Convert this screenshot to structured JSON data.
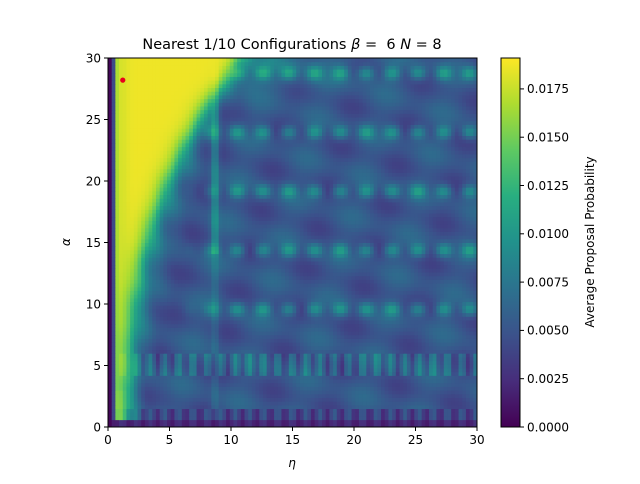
{
  "chart_data": {
    "type": "heatmap",
    "title": "Nearest 1/10 Configurations",
    "title_math": [
      {
        "sym": "β",
        "text": " =  6 "
      },
      {
        "sym": "N",
        "text": " = 8"
      }
    ],
    "xlabel": "η",
    "ylabel": "α",
    "xlim": [
      0,
      30
    ],
    "ylim": [
      0,
      30
    ],
    "xticks": [
      "0",
      "5",
      "10",
      "15",
      "20",
      "25",
      "30"
    ],
    "yticks": [
      "0",
      "5",
      "10",
      "15",
      "20",
      "25",
      "30"
    ],
    "colormap": "viridis",
    "colorbar": {
      "label": "Average Proposal Probability",
      "range": [
        0,
        0.0191
      ],
      "ticks": [
        "0.0000",
        "0.0025",
        "0.0050",
        "0.0075",
        "0.0100",
        "0.0125",
        "0.0150",
        "0.0175"
      ]
    },
    "marker": {
      "x": 1.2,
      "y": 28.2,
      "color": "#e8001c"
    },
    "grid": false
  }
}
